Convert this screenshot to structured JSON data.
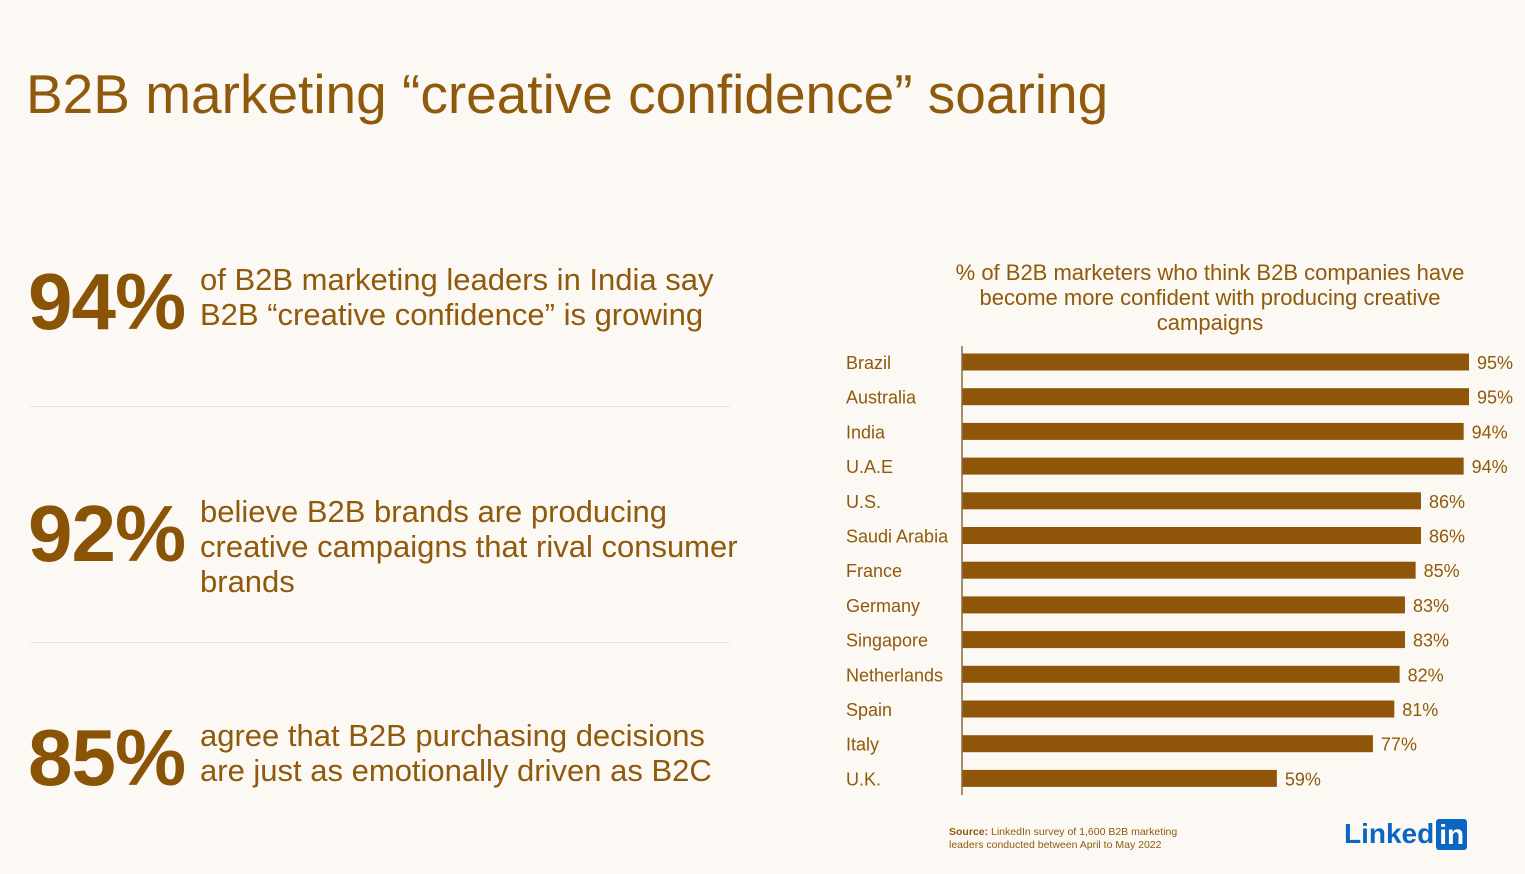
{
  "title": "B2B marketing “creative confidence” soaring",
  "stats": [
    {
      "value": "94%",
      "text": "of B2B marketing leaders in India say B2B “creative confidence” is growing"
    },
    {
      "value": "92%",
      "text": "believe B2B brands are producing creative campaigns that rival consumer brands"
    },
    {
      "value": "85%",
      "text": "agree that B2B purchasing decisions are just as emotionally driven as B2C"
    }
  ],
  "chart_data": {
    "type": "bar",
    "orientation": "horizontal",
    "title": "% of B2B marketers who think B2B companies have become more confident with producing creative campaigns",
    "categories": [
      "Brazil",
      "Australia",
      "India",
      "U.A.E",
      "U.S.",
      "Saudi Arabia",
      "France",
      "Germany",
      "Singapore",
      "Netherlands",
      "Spain",
      "Italy",
      "U.K."
    ],
    "values": [
      95,
      95,
      94,
      94,
      86,
      86,
      85,
      83,
      83,
      82,
      81,
      77,
      59
    ],
    "labels": [
      "95%",
      "95%",
      "94%",
      "94%",
      "86%",
      "86%",
      "85%",
      "83%",
      "83%",
      "82%",
      "81%",
      "77%",
      "59%"
    ],
    "xlim": [
      0,
      100
    ],
    "grid": false,
    "bar_color": "#8f5508"
  },
  "source": {
    "label": "Source:",
    "text": " LinkedIn survey of 1,600 B2B marketing leaders conducted between April to May 2022"
  },
  "logo": {
    "text": "Linked",
    "badge": "in",
    "color": "#0a66c2"
  }
}
